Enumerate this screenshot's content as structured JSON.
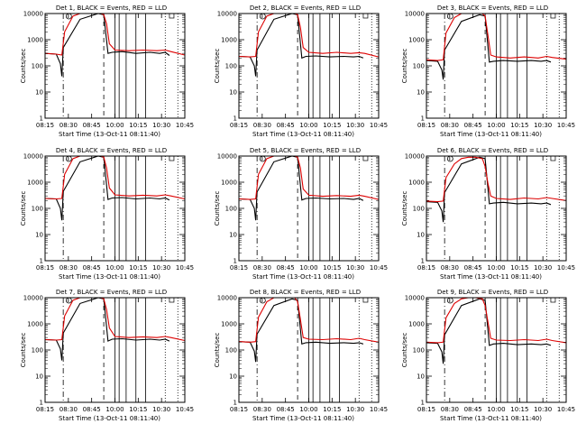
{
  "figure": {
    "colors": {
      "events": "#000000",
      "lld": "#dd0000",
      "axes": "#000000"
    },
    "start_time_label": "Start Time (13-Oct-11 08:11:40)"
  },
  "chart_data": [
    {
      "type": "line",
      "title": "Det 1, BLACK = Events, RED = LLD",
      "xlabel": "Start Time (13-Oct-11 08:11:40)",
      "ylabel": "Counts/sec",
      "xticks": [
        "08:15",
        "08:30",
        "08:45",
        "10:00",
        "10:15",
        "10:30",
        "10:45"
      ],
      "yticks": [
        "1",
        "10",
        "100",
        "1000",
        "10000"
      ],
      "yscale": "log",
      "ylim": [
        1,
        10000
      ],
      "series": [
        {
          "name": "Events",
          "x": [
            0,
            0.08,
            0.11,
            0.12,
            0.13,
            0.25,
            0.38,
            0.42,
            0.45,
            0.48,
            0.55,
            0.65,
            0.75,
            0.82,
            0.86,
            0.89
          ],
          "y": [
            300,
            280,
            120,
            40,
            500,
            6000,
            10000,
            9000,
            300,
            330,
            350,
            300,
            330,
            300,
            330,
            250
          ]
        },
        {
          "name": "LLD",
          "x": [
            0,
            0.08,
            0.12,
            0.14,
            0.2,
            0.25,
            0.3,
            0.35,
            0.4,
            0.42,
            0.44,
            0.46,
            0.5,
            0.6,
            0.7,
            0.8,
            0.86,
            0.9,
            1.0
          ],
          "y": [
            300,
            280,
            260,
            2000,
            8000,
            10000,
            10000,
            10000,
            10000,
            9000,
            4000,
            700,
            400,
            380,
            400,
            380,
            400,
            350,
            260
          ]
        }
      ]
    },
    {
      "type": "line",
      "title": "Det 2, BLACK = Events, RED = LLD",
      "xlabel": "Start Time (13-Oct-11 08:11:40)",
      "ylabel": "Counts/sec",
      "xticks": [
        "08:15",
        "08:30",
        "08:45",
        "10:00",
        "10:15",
        "10:30",
        "10:45"
      ],
      "yticks": [
        "1",
        "10",
        "100",
        "1000",
        "10000"
      ],
      "yscale": "log",
      "ylim": [
        1,
        10000
      ],
      "series": [
        {
          "name": "Events",
          "x": [
            0,
            0.08,
            0.11,
            0.12,
            0.13,
            0.25,
            0.38,
            0.42,
            0.45,
            0.48,
            0.55,
            0.65,
            0.75,
            0.82,
            0.86,
            0.89
          ],
          "y": [
            230,
            220,
            100,
            40,
            400,
            6000,
            10000,
            9000,
            200,
            230,
            240,
            220,
            230,
            220,
            230,
            200
          ]
        },
        {
          "name": "LLD",
          "x": [
            0,
            0.08,
            0.12,
            0.14,
            0.2,
            0.25,
            0.3,
            0.35,
            0.4,
            0.42,
            0.44,
            0.46,
            0.5,
            0.6,
            0.7,
            0.8,
            0.86,
            0.9,
            1.0
          ],
          "y": [
            230,
            220,
            230,
            2000,
            8000,
            10000,
            10000,
            10000,
            10000,
            9000,
            3000,
            500,
            330,
            300,
            330,
            300,
            320,
            300,
            220
          ]
        }
      ]
    },
    {
      "type": "line",
      "title": "Det 3, BLACK = Events, RED = LLD",
      "xlabel": "Start Time (13-Oct-11 08:11:40)",
      "ylabel": "Counts/sec",
      "xticks": [
        "08:15",
        "08:30",
        "08:45",
        "10:00",
        "10:15",
        "10:30",
        "10:45"
      ],
      "yticks": [
        "1",
        "10",
        "100",
        "1000",
        "10000"
      ],
      "yscale": "log",
      "ylim": [
        1,
        10000
      ],
      "series": [
        {
          "name": "Events",
          "x": [
            0,
            0.08,
            0.11,
            0.12,
            0.13,
            0.25,
            0.38,
            0.42,
            0.45,
            0.48,
            0.55,
            0.65,
            0.75,
            0.82,
            0.86,
            0.89
          ],
          "y": [
            160,
            150,
            70,
            30,
            400,
            5000,
            9000,
            8000,
            140,
            150,
            160,
            150,
            160,
            150,
            160,
            140
          ]
        },
        {
          "name": "LLD",
          "x": [
            0,
            0.08,
            0.12,
            0.14,
            0.2,
            0.25,
            0.3,
            0.35,
            0.4,
            0.42,
            0.44,
            0.46,
            0.5,
            0.6,
            0.7,
            0.8,
            0.86,
            0.9,
            1.0
          ],
          "y": [
            170,
            160,
            170,
            1800,
            7000,
            10000,
            10000,
            10000,
            10000,
            8000,
            1500,
            260,
            220,
            200,
            220,
            200,
            230,
            210,
            180
          ]
        }
      ]
    },
    {
      "type": "line",
      "title": "Det 4, BLACK = Events, RED = LLD",
      "xlabel": "Start Time (13-Oct-11 08:11:40)",
      "ylabel": "Counts/sec",
      "xticks": [
        "08:15",
        "08:30",
        "08:45",
        "10:00",
        "10:15",
        "10:30",
        "10:45"
      ],
      "yticks": [
        "1",
        "10",
        "100",
        "1000",
        "10000"
      ],
      "yscale": "log",
      "ylim": [
        1,
        10000
      ],
      "series": [
        {
          "name": "Events",
          "x": [
            0,
            0.08,
            0.11,
            0.12,
            0.13,
            0.25,
            0.38,
            0.42,
            0.45,
            0.48,
            0.55,
            0.65,
            0.75,
            0.82,
            0.86,
            0.89
          ],
          "y": [
            240,
            230,
            100,
            35,
            450,
            6000,
            10000,
            9000,
            220,
            250,
            260,
            230,
            250,
            230,
            250,
            210
          ]
        },
        {
          "name": "LLD",
          "x": [
            0,
            0.08,
            0.12,
            0.14,
            0.2,
            0.25,
            0.3,
            0.35,
            0.4,
            0.42,
            0.44,
            0.46,
            0.5,
            0.6,
            0.7,
            0.8,
            0.86,
            0.9,
            1.0
          ],
          "y": [
            240,
            230,
            240,
            2000,
            8000,
            10000,
            10000,
            10000,
            10000,
            9000,
            3500,
            600,
            330,
            300,
            320,
            300,
            330,
            300,
            230
          ]
        }
      ]
    },
    {
      "type": "line",
      "title": "Det 5, BLACK = Events, RED = LLD",
      "xlabel": "Start Time (13-Oct-11 08:11:40)",
      "ylabel": "Counts/sec",
      "xticks": [
        "08:15",
        "08:30",
        "08:45",
        "10:00",
        "10:15",
        "10:30",
        "10:45"
      ],
      "yticks": [
        "1",
        "10",
        "100",
        "1000",
        "10000"
      ],
      "yscale": "log",
      "ylim": [
        1,
        10000
      ],
      "series": [
        {
          "name": "Events",
          "x": [
            0,
            0.08,
            0.11,
            0.12,
            0.13,
            0.25,
            0.38,
            0.42,
            0.45,
            0.48,
            0.55,
            0.65,
            0.75,
            0.82,
            0.86,
            0.89
          ],
          "y": [
            230,
            220,
            100,
            35,
            420,
            6000,
            10000,
            9000,
            210,
            240,
            250,
            230,
            240,
            220,
            240,
            200
          ]
        },
        {
          "name": "LLD",
          "x": [
            0,
            0.08,
            0.12,
            0.14,
            0.2,
            0.25,
            0.3,
            0.35,
            0.4,
            0.42,
            0.44,
            0.46,
            0.5,
            0.6,
            0.7,
            0.8,
            0.86,
            0.9,
            1.0
          ],
          "y": [
            230,
            220,
            230,
            2000,
            8000,
            10000,
            10000,
            10000,
            10000,
            9000,
            3500,
            550,
            320,
            290,
            310,
            290,
            320,
            290,
            220
          ]
        }
      ]
    },
    {
      "type": "line",
      "title": "Det 6, BLACK = Events, RED = LLD",
      "xlabel": "Start Time (13-Oct-11 08:11:40)",
      "ylabel": "Counts/sec",
      "xticks": [
        "08:15",
        "08:30",
        "08:45",
        "10:00",
        "10:15",
        "10:30",
        "10:45"
      ],
      "yticks": [
        "1",
        "10",
        "100",
        "1000",
        "10000"
      ],
      "yscale": "log",
      "ylim": [
        1,
        10000
      ],
      "series": [
        {
          "name": "Events",
          "x": [
            0,
            0.08,
            0.11,
            0.12,
            0.13,
            0.25,
            0.38,
            0.42,
            0.45,
            0.48,
            0.55,
            0.65,
            0.75,
            0.82,
            0.86,
            0.89
          ],
          "y": [
            180,
            170,
            80,
            30,
            400,
            5000,
            9000,
            8000,
            150,
            160,
            170,
            150,
            160,
            150,
            160,
            140
          ]
        },
        {
          "name": "LLD",
          "x": [
            0,
            0.08,
            0.12,
            0.14,
            0.2,
            0.25,
            0.3,
            0.35,
            0.4,
            0.42,
            0.44,
            0.46,
            0.5,
            0.6,
            0.7,
            0.8,
            0.86,
            0.9,
            1.0
          ],
          "y": [
            190,
            180,
            190,
            1500,
            5000,
            8000,
            9000,
            9000,
            8000,
            4000,
            900,
            300,
            240,
            220,
            250,
            230,
            260,
            240,
            200
          ]
        }
      ]
    },
    {
      "type": "line",
      "title": "Det 7, BLACK = Events, RED = LLD",
      "xlabel": "Start Time (13-Oct-11 08:11:40)",
      "ylabel": "Counts/sec",
      "xticks": [
        "08:15",
        "08:30",
        "08:45",
        "10:00",
        "10:15",
        "10:30",
        "10:45"
      ],
      "yticks": [
        "1",
        "10",
        "100",
        "1000",
        "10000"
      ],
      "yscale": "log",
      "ylim": [
        1,
        10000
      ],
      "series": [
        {
          "name": "Events",
          "x": [
            0,
            0.08,
            0.11,
            0.12,
            0.13,
            0.25,
            0.38,
            0.42,
            0.45,
            0.48,
            0.55,
            0.65,
            0.75,
            0.82,
            0.86,
            0.89
          ],
          "y": [
            250,
            240,
            110,
            40,
            450,
            6000,
            10000,
            9000,
            220,
            260,
            270,
            240,
            260,
            240,
            260,
            220
          ]
        },
        {
          "name": "LLD",
          "x": [
            0,
            0.08,
            0.12,
            0.14,
            0.2,
            0.25,
            0.3,
            0.35,
            0.4,
            0.42,
            0.44,
            0.46,
            0.5,
            0.6,
            0.7,
            0.8,
            0.86,
            0.9,
            1.0
          ],
          "y": [
            250,
            240,
            250,
            2000,
            8000,
            10000,
            10000,
            10000,
            10000,
            9000,
            3500,
            700,
            330,
            300,
            320,
            300,
            330,
            300,
            230
          ]
        }
      ]
    },
    {
      "type": "line",
      "title": "Det 8, BLACK = Events, RED = LLD",
      "xlabel": "Start Time (13-Oct-11 08:11:40)",
      "ylabel": "Counts/sec",
      "xticks": [
        "08:15",
        "08:30",
        "08:45",
        "10:00",
        "10:15",
        "10:30",
        "10:45"
      ],
      "yticks": [
        "1",
        "10",
        "100",
        "1000",
        "10000"
      ],
      "yscale": "log",
      "ylim": [
        1,
        10000
      ],
      "series": [
        {
          "name": "Events",
          "x": [
            0,
            0.08,
            0.11,
            0.12,
            0.13,
            0.25,
            0.38,
            0.42,
            0.45,
            0.48,
            0.55,
            0.65,
            0.75,
            0.82,
            0.86,
            0.89
          ],
          "y": [
            210,
            200,
            90,
            35,
            400,
            5000,
            9000,
            8000,
            170,
            190,
            200,
            180,
            190,
            180,
            190,
            170
          ]
        },
        {
          "name": "LLD",
          "x": [
            0,
            0.08,
            0.12,
            0.14,
            0.2,
            0.25,
            0.3,
            0.35,
            0.4,
            0.42,
            0.44,
            0.46,
            0.5,
            0.6,
            0.7,
            0.8,
            0.86,
            0.9,
            1.0
          ],
          "y": [
            210,
            200,
            210,
            1800,
            7000,
            10000,
            10000,
            10000,
            10000,
            7000,
            1500,
            300,
            260,
            250,
            270,
            250,
            280,
            250,
            200
          ]
        }
      ]
    },
    {
      "type": "line",
      "title": "Det 9, BLACK = Events, RED = LLD",
      "xlabel": "Start Time (13-Oct-11 08:11:40)",
      "ylabel": "Counts/sec",
      "xticks": [
        "08:15",
        "08:30",
        "08:45",
        "10:00",
        "10:15",
        "10:30",
        "10:45"
      ],
      "yticks": [
        "1",
        "10",
        "100",
        "1000",
        "10000"
      ],
      "yscale": "log",
      "ylim": [
        1,
        10000
      ],
      "series": [
        {
          "name": "Events",
          "x": [
            0,
            0.08,
            0.11,
            0.12,
            0.13,
            0.25,
            0.38,
            0.42,
            0.45,
            0.48,
            0.55,
            0.65,
            0.75,
            0.82,
            0.86,
            0.89
          ],
          "y": [
            190,
            180,
            85,
            30,
            380,
            5000,
            9000,
            8000,
            150,
            170,
            180,
            160,
            170,
            160,
            170,
            150
          ]
        },
        {
          "name": "LLD",
          "x": [
            0,
            0.08,
            0.12,
            0.14,
            0.2,
            0.25,
            0.3,
            0.35,
            0.4,
            0.42,
            0.44,
            0.46,
            0.5,
            0.6,
            0.7,
            0.8,
            0.86,
            0.9,
            1.0
          ],
          "y": [
            200,
            190,
            200,
            1700,
            6000,
            9000,
            10000,
            10000,
            9000,
            5000,
            1200,
            280,
            240,
            230,
            250,
            230,
            260,
            230,
            190
          ]
        }
      ]
    }
  ]
}
